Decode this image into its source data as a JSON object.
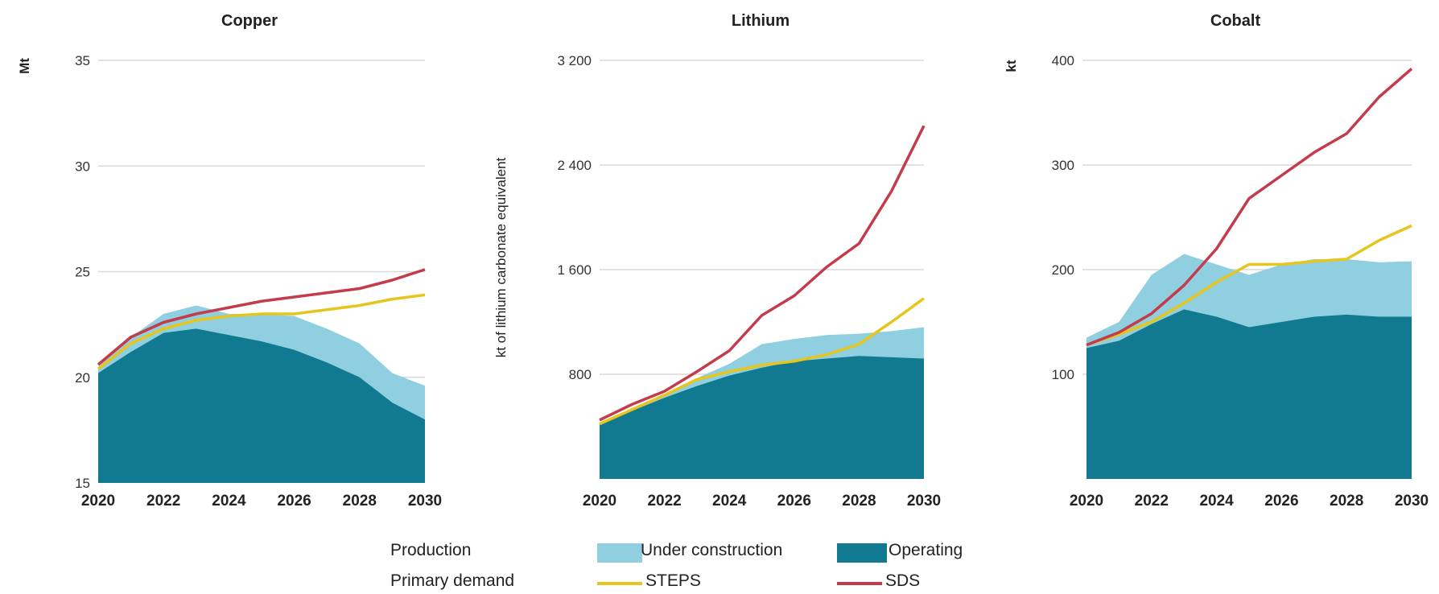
{
  "legend": {
    "production_label": "Production",
    "demand_label": "Primary demand",
    "under_construction": "Under construction",
    "operating": "Operating",
    "steps": "STEPS",
    "sds": "SDS"
  },
  "colors": {
    "operating": "#117a90",
    "under_construction": "#8fcfdf",
    "steps": "#e7c51f",
    "sds": "#c43b4b",
    "grid": "#d9d9d9"
  },
  "chart_data": [
    {
      "type": "area",
      "title": "Copper",
      "ylabel": "Mt",
      "ylim": [
        15,
        35
      ],
      "yticks": [
        "15",
        "20",
        "25",
        "30",
        "35"
      ],
      "ytick_values": [
        15,
        20,
        25,
        30,
        35
      ],
      "x": [
        2020,
        2021,
        2022,
        2023,
        2024,
        2025,
        2026,
        2027,
        2028,
        2029,
        2030
      ],
      "xticks": [
        "2020",
        "2022",
        "2024",
        "2026",
        "2028",
        "2030"
      ],
      "series": [
        {
          "name": "Operating",
          "kind": "area",
          "values": [
            20.2,
            21.2,
            22.1,
            22.3,
            22.0,
            21.7,
            21.3,
            20.7,
            20.0,
            18.8,
            18.0
          ]
        },
        {
          "name": "Under construction",
          "kind": "area",
          "values": [
            20.5,
            21.9,
            23.0,
            23.4,
            23.0,
            23.0,
            22.9,
            22.3,
            21.6,
            20.2,
            19.6
          ]
        },
        {
          "name": "STEPS",
          "kind": "line",
          "values": [
            20.4,
            21.6,
            22.3,
            22.7,
            22.9,
            23.0,
            23.0,
            23.2,
            23.4,
            23.7,
            23.9
          ]
        },
        {
          "name": "SDS",
          "kind": "line",
          "values": [
            20.6,
            21.9,
            22.6,
            23.0,
            23.3,
            23.6,
            23.8,
            24.0,
            24.2,
            24.6,
            25.1
          ]
        }
      ]
    },
    {
      "type": "area",
      "title": "Lithium",
      "ylabel": "kt of lithium carbonate equivalent",
      "ylim": [
        0,
        3200
      ],
      "yticks": [
        "800",
        "1 600",
        "2 400",
        "3 200"
      ],
      "ytick_values": [
        800,
        1600,
        2400,
        3200
      ],
      "x": [
        2020,
        2021,
        2022,
        2023,
        2024,
        2025,
        2026,
        2027,
        2028,
        2029,
        2030
      ],
      "xticks": [
        "2020",
        "2022",
        "2024",
        "2026",
        "2028",
        "2030"
      ],
      "series": [
        {
          "name": "Operating",
          "kind": "area",
          "values": [
            420,
            520,
            620,
            710,
            790,
            850,
            900,
            920,
            940,
            930,
            920
          ]
        },
        {
          "name": "Under construction",
          "kind": "area",
          "values": [
            430,
            540,
            650,
            770,
            880,
            1030,
            1070,
            1100,
            1110,
            1130,
            1160
          ]
        },
        {
          "name": "STEPS",
          "kind": "line",
          "values": [
            420,
            530,
            640,
            760,
            820,
            870,
            900,
            950,
            1030,
            1200,
            1380
          ]
        },
        {
          "name": "SDS",
          "kind": "line",
          "values": [
            450,
            570,
            670,
            820,
            980,
            1250,
            1400,
            1620,
            1800,
            2200,
            2700
          ]
        }
      ]
    },
    {
      "type": "area",
      "title": "Cobalt",
      "ylabel": "kt",
      "ylim": [
        0,
        400
      ],
      "yticks": [
        "100",
        "200",
        "300",
        "400"
      ],
      "ytick_values": [
        100,
        200,
        300,
        400
      ],
      "x": [
        2020,
        2021,
        2022,
        2023,
        2024,
        2025,
        2026,
        2027,
        2028,
        2029,
        2030
      ],
      "xticks": [
        "2020",
        "2022",
        "2024",
        "2026",
        "2028",
        "2030"
      ],
      "series": [
        {
          "name": "Operating",
          "kind": "area",
          "values": [
            125,
            132,
            148,
            162,
            155,
            145,
            150,
            155,
            157,
            155,
            155
          ]
        },
        {
          "name": "Under construction",
          "kind": "area",
          "values": [
            135,
            150,
            195,
            215,
            205,
            195,
            205,
            210,
            210,
            207,
            208
          ]
        },
        {
          "name": "STEPS",
          "kind": "line",
          "values": [
            128,
            138,
            150,
            168,
            188,
            205,
            205,
            208,
            210,
            228,
            242
          ]
        },
        {
          "name": "SDS",
          "kind": "line",
          "values": [
            128,
            140,
            158,
            185,
            220,
            268,
            290,
            312,
            330,
            365,
            392
          ]
        }
      ]
    }
  ]
}
